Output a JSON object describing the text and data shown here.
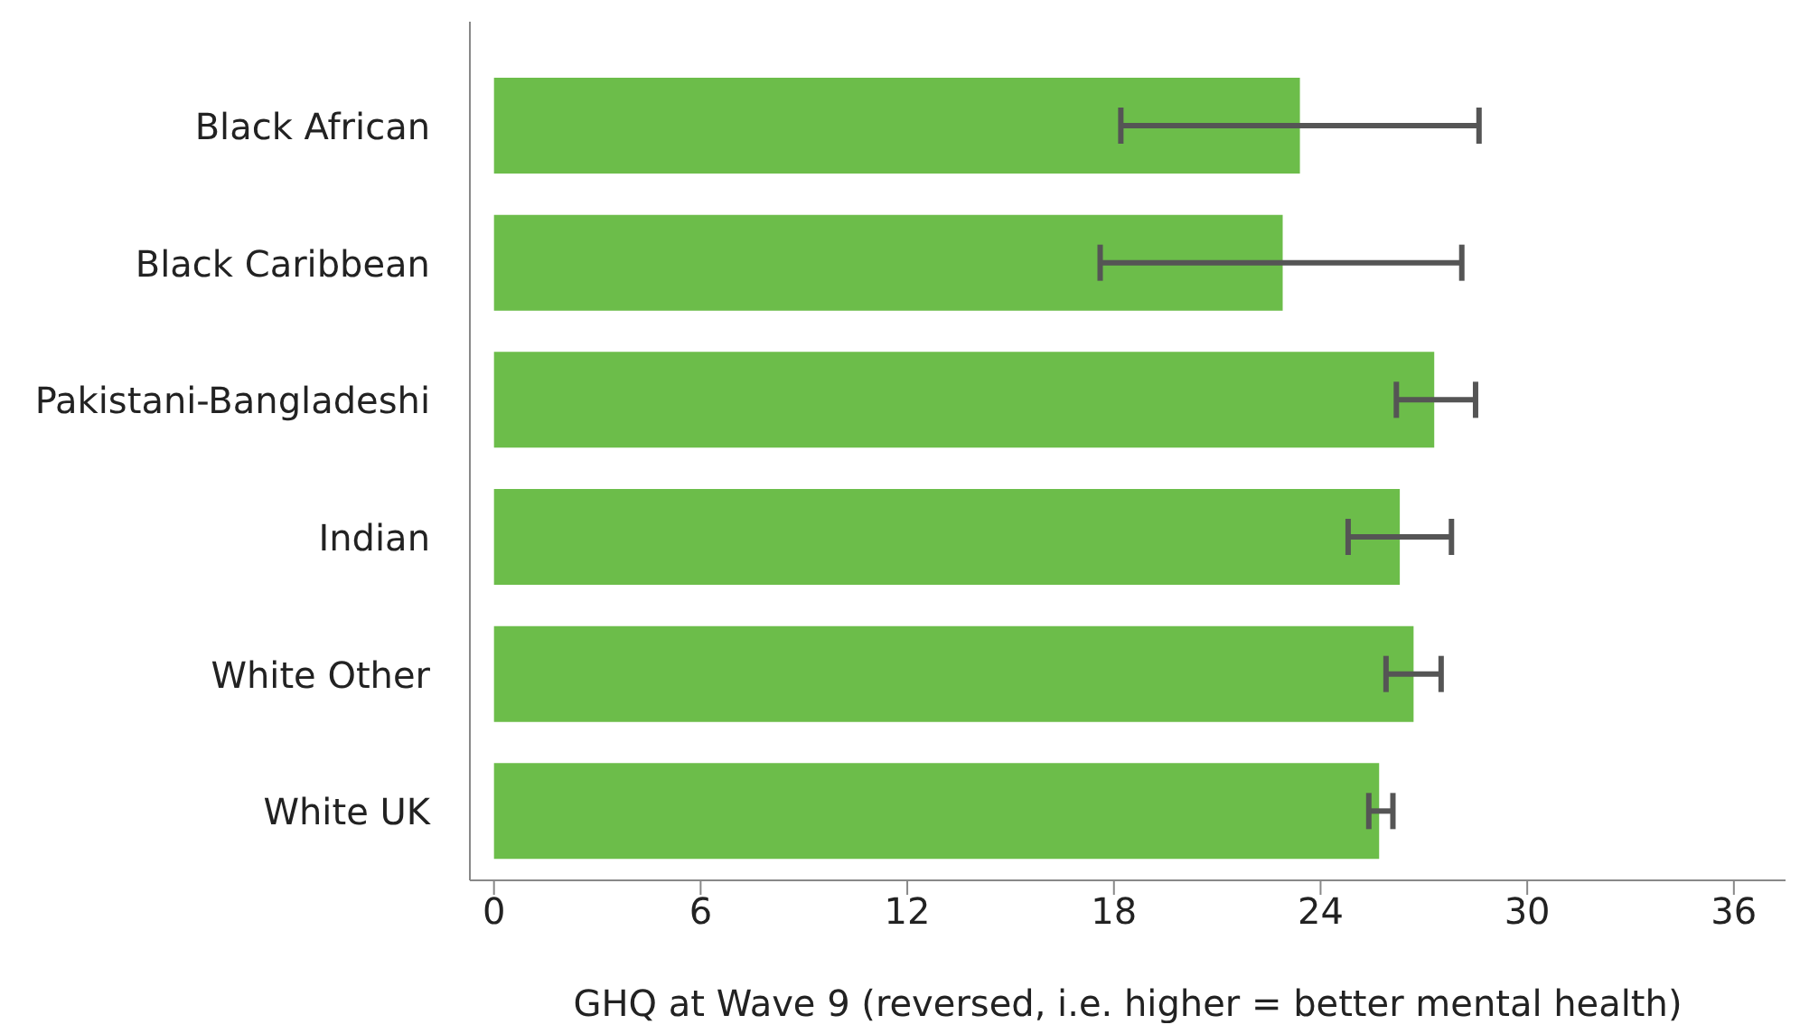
{
  "chart_data": {
    "type": "bar",
    "orientation": "horizontal",
    "xlabel": "GHQ at Wave 9 (reversed, i.e. higher = better mental health)",
    "categories": [
      "Black African",
      "Black Caribbean",
      "Pakistani-Bangladeshi",
      "Indian",
      "White Other",
      "White UK"
    ],
    "values": [
      23.4,
      22.9,
      27.3,
      26.3,
      26.7,
      25.7
    ],
    "errors": [
      [
        18.2,
        28.6
      ],
      [
        17.6,
        28.1
      ],
      [
        26.2,
        28.5
      ],
      [
        24.8,
        27.8
      ],
      [
        25.9,
        27.5
      ],
      [
        25.4,
        26.1
      ]
    ],
    "color": "#6cbd4a",
    "xlim": [
      -0.7,
      37.5
    ],
    "xticks": [
      0,
      6,
      12,
      18,
      24,
      30,
      36
    ],
    "grid": false
  }
}
